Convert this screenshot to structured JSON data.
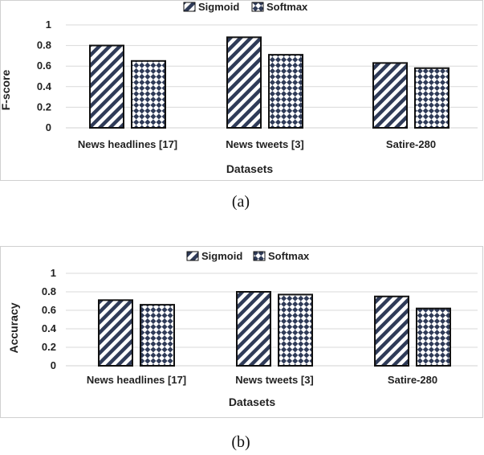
{
  "colors": {
    "sigmoid": "#2f3b58",
    "softmax": "#2f3b58",
    "grid": "#d9d9d9"
  },
  "chart_data": [
    {
      "type": "bar",
      "caption": "(a)",
      "categories": [
        "News headlines [17]",
        "News tweets [3]",
        "Satire-280"
      ],
      "series": [
        {
          "name": "Sigmoid",
          "pattern": "diagonal-stripes",
          "values": [
            0.8,
            0.88,
            0.63
          ]
        },
        {
          "name": "Softmax",
          "pattern": "diamond-checker",
          "values": [
            0.65,
            0.71,
            0.58
          ]
        }
      ],
      "xlabel": "Datasets",
      "ylabel": "F-score",
      "ylim": [
        0,
        1
      ],
      "yticks": [
        "0",
        "0.2",
        "0.4",
        "0.6",
        "0.8",
        "1"
      ],
      "grid": true,
      "legend": "top-center"
    },
    {
      "type": "bar",
      "caption": "(b)",
      "categories": [
        "News headlines [17]",
        "News tweets [3]",
        "Satire-280"
      ],
      "series": [
        {
          "name": "Sigmoid",
          "pattern": "diagonal-stripes",
          "values": [
            0.71,
            0.8,
            0.75
          ]
        },
        {
          "name": "Softmax",
          "pattern": "diamond-checker",
          "values": [
            0.66,
            0.77,
            0.62
          ]
        }
      ],
      "xlabel": "Datasets",
      "ylabel": "Accuracy",
      "ylim": [
        0,
        1
      ],
      "yticks": [
        "0",
        "0.2",
        "0.4",
        "0.6",
        "0.8",
        "1"
      ],
      "grid": true,
      "legend": "top-center"
    }
  ]
}
